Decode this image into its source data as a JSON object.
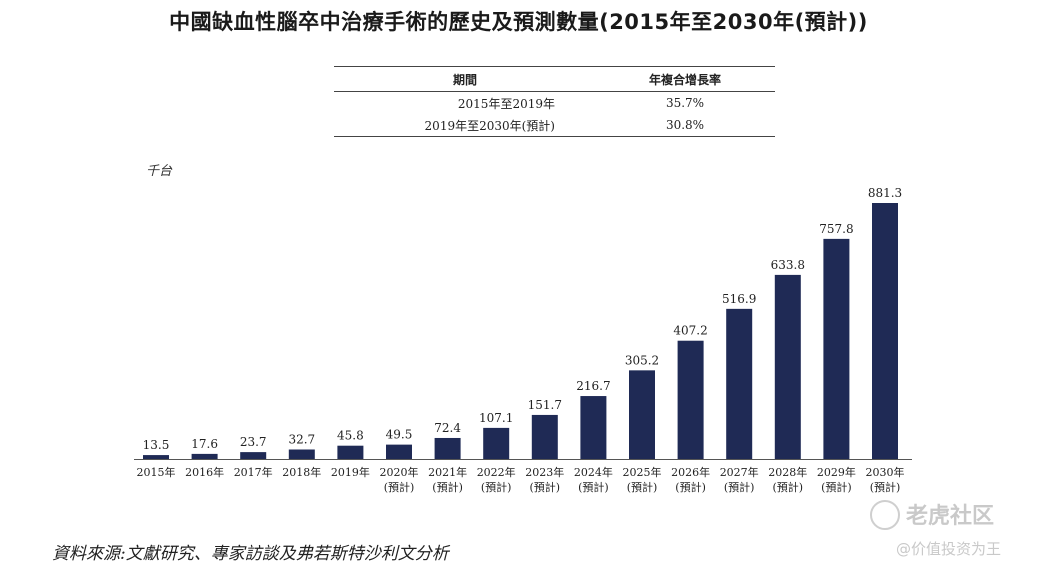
{
  "title": "中國缺血性腦卒中治療手術的歷史及預測數量(2015年至2030年(預計))",
  "cagr_table": {
    "headers": [
      "期間",
      "年複合增長率"
    ],
    "rows": [
      {
        "period": "2015年至2019年",
        "cagr": "35.7%"
      },
      {
        "period": "2019年至2030年(預計)",
        "cagr": "30.8%"
      }
    ]
  },
  "source": "資料來源:文獻研究、專家訪談及弗若斯特沙利文分析",
  "watermark": {
    "brand": "老虎社区",
    "handle": "@价值投资为王"
  },
  "chart_data": {
    "type": "bar",
    "unit_label": "千台",
    "ylim": [
      0,
      900
    ],
    "grid": false,
    "bar_color": "#1f2a55",
    "categories": [
      "2015年",
      "2016年",
      "2017年",
      "2018年",
      "2019年",
      "2020年",
      "2021年",
      "2022年",
      "2023年",
      "2024年",
      "2025年",
      "2026年",
      "2027年",
      "2028年",
      "2029年",
      "2030年"
    ],
    "sublabels": [
      "",
      "",
      "",
      "",
      "",
      "(預計)",
      "(預計)",
      "(預計)",
      "(預計)",
      "(預計)",
      "(預計)",
      "(預計)",
      "(預計)",
      "(預計)",
      "(預計)",
      "(預計)"
    ],
    "values": [
      13.5,
      17.6,
      23.7,
      32.7,
      45.8,
      49.5,
      72.4,
      107.1,
      151.7,
      216.7,
      305.2,
      407.2,
      516.9,
      633.8,
      757.8,
      881.3
    ],
    "value_labels": [
      "13.5",
      "17.6",
      "23.7",
      "32.7",
      "45.8",
      "49.5",
      "72.4",
      "107.1",
      "151.7",
      "216.7",
      "305.2",
      "407.2",
      "516.9",
      "633.8",
      "757.8",
      "881.3"
    ]
  }
}
